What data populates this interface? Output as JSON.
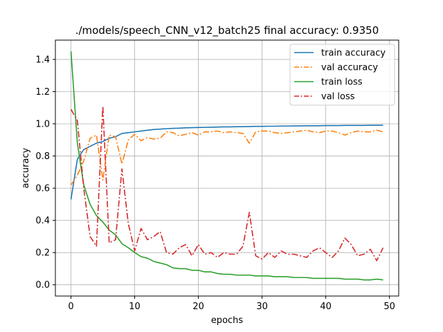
{
  "chart_data": {
    "type": "line",
    "title": "./models/speech_CNN_v12_batch25 final accuracy: 0.9350",
    "xlabel": "epochs",
    "ylabel": "accuracy",
    "xlim": [
      -2.45,
      51.45
    ],
    "ylim": [
      -0.07,
      1.52
    ],
    "xticks": [
      0,
      10,
      20,
      30,
      40,
      50
    ],
    "yticks": [
      0.0,
      0.2,
      0.4,
      0.6,
      0.8,
      1.0,
      1.2,
      1.4
    ],
    "xtick_labels": [
      "0",
      "10",
      "20",
      "30",
      "40",
      "50"
    ],
    "ytick_labels": [
      "0.0",
      "0.2",
      "0.4",
      "0.6",
      "0.8",
      "1.0",
      "1.2",
      "1.4"
    ],
    "grid": true,
    "legend_position": "upper-right",
    "x": [
      0,
      1,
      2,
      3,
      4,
      5,
      6,
      7,
      8,
      9,
      10,
      11,
      12,
      13,
      14,
      15,
      16,
      17,
      18,
      19,
      20,
      21,
      22,
      23,
      24,
      25,
      26,
      27,
      28,
      29,
      30,
      31,
      32,
      33,
      34,
      35,
      36,
      37,
      38,
      39,
      40,
      41,
      42,
      43,
      44,
      45,
      46,
      47,
      48,
      49
    ],
    "series": [
      {
        "name": "train accuracy",
        "color": "#1f77b4",
        "dash": "solid",
        "values": [
          0.53,
          0.78,
          0.84,
          0.86,
          0.88,
          0.89,
          0.91,
          0.92,
          0.94,
          0.945,
          0.95,
          0.955,
          0.96,
          0.965,
          0.967,
          0.97,
          0.972,
          0.973,
          0.975,
          0.976,
          0.977,
          0.978,
          0.979,
          0.98,
          0.981,
          0.981,
          0.982,
          0.982,
          0.983,
          0.984,
          0.984,
          0.985,
          0.985,
          0.986,
          0.986,
          0.987,
          0.987,
          0.988,
          0.988,
          0.988,
          0.989,
          0.989,
          0.989,
          0.99,
          0.99,
          0.99,
          0.99,
          0.991,
          0.991,
          0.991
        ]
      },
      {
        "name": "val accuracy",
        "color": "#ff7f0e",
        "dash": "dashdot",
        "values": [
          0.62,
          0.68,
          0.77,
          0.91,
          0.93,
          0.65,
          0.93,
          0.92,
          0.75,
          0.9,
          0.935,
          0.895,
          0.915,
          0.905,
          0.91,
          0.95,
          0.945,
          0.925,
          0.935,
          0.945,
          0.93,
          0.95,
          0.95,
          0.955,
          0.945,
          0.95,
          0.945,
          0.94,
          0.88,
          0.95,
          0.955,
          0.955,
          0.945,
          0.94,
          0.945,
          0.95,
          0.955,
          0.96,
          0.95,
          0.945,
          0.955,
          0.955,
          0.945,
          0.93,
          0.945,
          0.955,
          0.95,
          0.95,
          0.96,
          0.95
        ]
      },
      {
        "name": "train loss",
        "color": "#2ca02c",
        "dash": "solid",
        "values": [
          1.45,
          0.88,
          0.62,
          0.5,
          0.43,
          0.39,
          0.34,
          0.31,
          0.255,
          0.23,
          0.2,
          0.175,
          0.165,
          0.145,
          0.135,
          0.125,
          0.105,
          0.1,
          0.1,
          0.09,
          0.09,
          0.08,
          0.08,
          0.07,
          0.065,
          0.065,
          0.06,
          0.06,
          0.06,
          0.055,
          0.055,
          0.055,
          0.05,
          0.05,
          0.05,
          0.045,
          0.045,
          0.045,
          0.04,
          0.04,
          0.04,
          0.04,
          0.04,
          0.035,
          0.035,
          0.035,
          0.03,
          0.03,
          0.035,
          0.03
        ]
      },
      {
        "name": "val loss",
        "color": "#d62728",
        "dash": "dashdot",
        "values": [
          1.09,
          1.02,
          0.6,
          0.3,
          0.24,
          1.11,
          0.26,
          0.28,
          0.72,
          0.38,
          0.21,
          0.35,
          0.28,
          0.3,
          0.33,
          0.2,
          0.19,
          0.23,
          0.25,
          0.18,
          0.25,
          0.19,
          0.2,
          0.17,
          0.2,
          0.19,
          0.19,
          0.24,
          0.45,
          0.18,
          0.16,
          0.2,
          0.17,
          0.21,
          0.19,
          0.19,
          0.18,
          0.17,
          0.21,
          0.23,
          0.2,
          0.17,
          0.21,
          0.29,
          0.25,
          0.18,
          0.19,
          0.22,
          0.15,
          0.23
        ]
      }
    ]
  }
}
